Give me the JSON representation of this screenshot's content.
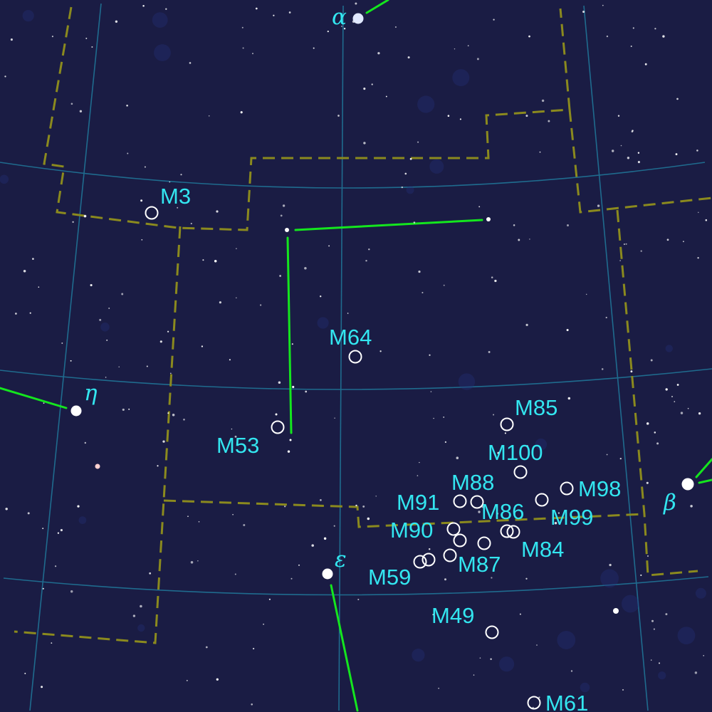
{
  "colors": {
    "background": "#1a1c44",
    "grid": "#1f6b8e",
    "boundary": "#8b8a1e",
    "asterism": "#14e61e",
    "labels": "#33e6f0",
    "objects": "#ffffff"
  },
  "named_stars": [
    {
      "id": "alpha",
      "label": "α"
    },
    {
      "id": "beta",
      "label": "β"
    },
    {
      "id": "eta",
      "label": "η"
    },
    {
      "id": "epsilon",
      "label": "ε"
    }
  ],
  "deep_sky_objects": [
    {
      "id": "m3",
      "label": "M3"
    },
    {
      "id": "m64",
      "label": "M64"
    },
    {
      "id": "m53",
      "label": "M53"
    },
    {
      "id": "m85",
      "label": "M85"
    },
    {
      "id": "m100",
      "label": "M100"
    },
    {
      "id": "m88",
      "label": "M88"
    },
    {
      "id": "m98",
      "label": "M98"
    },
    {
      "id": "m91",
      "label": "M91"
    },
    {
      "id": "m86",
      "label": "M86"
    },
    {
      "id": "m99",
      "label": "M99"
    },
    {
      "id": "m90",
      "label": "M90"
    },
    {
      "id": "m84",
      "label": "M84"
    },
    {
      "id": "m87",
      "label": "M87"
    },
    {
      "id": "m59",
      "label": "M59"
    },
    {
      "id": "m49",
      "label": "M49"
    },
    {
      "id": "m61",
      "label": "M61"
    }
  ]
}
